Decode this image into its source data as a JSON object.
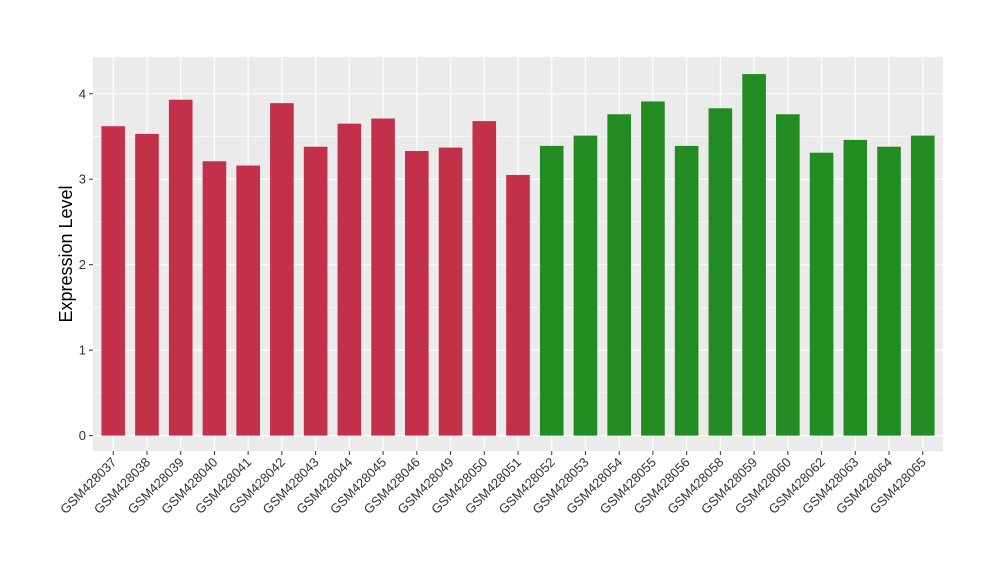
{
  "chart_data": {
    "type": "bar",
    "title": "",
    "xlabel": "",
    "ylabel": "Expression Level",
    "ylim": [
      -0.18,
      4.43
    ],
    "yticks": [
      0,
      1,
      2,
      3,
      4
    ],
    "grid": true,
    "background": "#ebebeb",
    "gridline_color": "#ffffff",
    "group_colors": [
      "#c3304a",
      "#228b22"
    ],
    "categories": [
      "GSM428037",
      "GSM428038",
      "GSM428039",
      "GSM428040",
      "GSM428041",
      "GSM428042",
      "GSM428043",
      "GSM428044",
      "GSM428045",
      "GSM428046",
      "GSM428049",
      "GSM428050",
      "GSM428051",
      "GSM428052",
      "GSM428053",
      "GSM428054",
      "GSM428055",
      "GSM428056",
      "GSM428058",
      "GSM428059",
      "GSM428060",
      "GSM428062",
      "GSM428063",
      "GSM428064",
      "GSM428065"
    ],
    "values": [
      3.62,
      3.53,
      3.93,
      3.21,
      3.16,
      3.89,
      3.38,
      3.65,
      3.71,
      3.33,
      3.37,
      3.68,
      3.05,
      3.39,
      3.51,
      3.76,
      3.91,
      3.39,
      3.83,
      4.23,
      3.76,
      3.31,
      3.46,
      3.38,
      3.51
    ],
    "group": [
      0,
      0,
      0,
      0,
      0,
      0,
      0,
      0,
      0,
      0,
      0,
      0,
      0,
      1,
      1,
      1,
      1,
      1,
      1,
      1,
      1,
      1,
      1,
      1,
      1
    ]
  }
}
